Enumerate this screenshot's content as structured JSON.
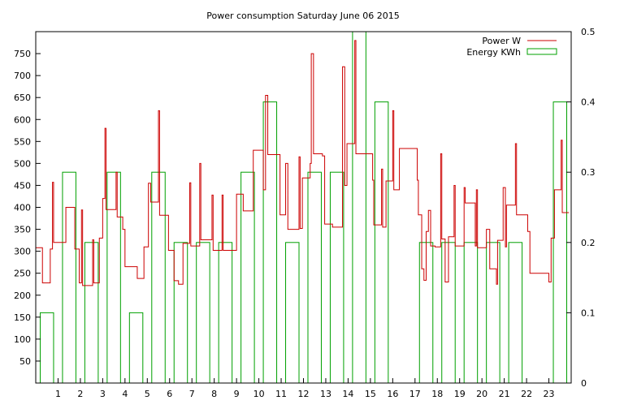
{
  "chart_data": {
    "type": "line",
    "title": "Power consumption Saturday June 06 2015",
    "xlabel": "",
    "ylabel": "",
    "xlim": [
      0,
      24
    ],
    "ylim_left": [
      0,
      800
    ],
    "ylim_right": [
      0,
      0.5
    ],
    "x_ticks": [
      "1",
      "2",
      "3",
      "4",
      "5",
      "6",
      "7",
      "8",
      "9",
      "10",
      "11",
      "12",
      "13",
      "14",
      "15",
      "16",
      "17",
      "18",
      "19",
      "20",
      "21",
      "22",
      "23"
    ],
    "y_ticks_left": [
      "50",
      "100",
      "150",
      "200",
      "250",
      "300",
      "350",
      "400",
      "450",
      "500",
      "550",
      "600",
      "650",
      "700",
      "750"
    ],
    "y_ticks_right": [
      "0",
      "0.1",
      "0.2",
      "0.3",
      "0.4",
      "0.5"
    ],
    "grid": false,
    "legend_position": "top-right",
    "colors": {
      "power": "#cc0000",
      "energy": "#00a000",
      "axis": "#000000"
    },
    "series": [
      {
        "name": "Power W",
        "axis": "left",
        "style": "steps",
        "points": [
          [
            0.0,
            308
          ],
          [
            0.3,
            300
          ],
          [
            0.3,
            228
          ],
          [
            0.65,
            228
          ],
          [
            0.65,
            305
          ],
          [
            0.75,
            305
          ],
          [
            0.75,
            457
          ],
          [
            0.8,
            320
          ],
          [
            1.35,
            320
          ],
          [
            1.35,
            400
          ],
          [
            1.75,
            400
          ],
          [
            1.75,
            305
          ],
          [
            1.95,
            305
          ],
          [
            1.95,
            228
          ],
          [
            2.05,
            228
          ],
          [
            2.05,
            394
          ],
          [
            2.1,
            222
          ],
          [
            2.55,
            222
          ],
          [
            2.55,
            326
          ],
          [
            2.6,
            228
          ],
          [
            2.85,
            228
          ],
          [
            2.85,
            330
          ],
          [
            3.0,
            330
          ],
          [
            3.0,
            420
          ],
          [
            3.1,
            580
          ],
          [
            3.15,
            395
          ],
          [
            3.5,
            395
          ],
          [
            3.6,
            480
          ],
          [
            3.65,
            378
          ],
          [
            3.9,
            378
          ],
          [
            3.9,
            350
          ],
          [
            4.0,
            265
          ],
          [
            4.55,
            265
          ],
          [
            4.55,
            238
          ],
          [
            4.85,
            238
          ],
          [
            4.85,
            310
          ],
          [
            5.05,
            310
          ],
          [
            5.05,
            455
          ],
          [
            5.15,
            412
          ],
          [
            5.45,
            412
          ],
          [
            5.5,
            620
          ],
          [
            5.55,
            382
          ],
          [
            5.95,
            382
          ],
          [
            5.95,
            302
          ],
          [
            6.2,
            302
          ],
          [
            6.2,
            233
          ],
          [
            6.4,
            233
          ],
          [
            6.4,
            225
          ],
          [
            6.6,
            225
          ],
          [
            6.6,
            318
          ],
          [
            6.9,
            318
          ],
          [
            6.9,
            456
          ],
          [
            6.95,
            312
          ],
          [
            7.3,
            312
          ],
          [
            7.35,
            500
          ],
          [
            7.4,
            326
          ],
          [
            7.7,
            326
          ],
          [
            7.9,
            428
          ],
          [
            7.95,
            302
          ],
          [
            8.3,
            302
          ],
          [
            8.35,
            428
          ],
          [
            8.4,
            302
          ],
          [
            9.0,
            302
          ],
          [
            9.0,
            430
          ],
          [
            9.3,
            430
          ],
          [
            9.3,
            392
          ],
          [
            9.7,
            392
          ],
          [
            9.75,
            530
          ],
          [
            10.2,
            530
          ],
          [
            10.2,
            440
          ],
          [
            10.3,
            655
          ],
          [
            10.4,
            520
          ],
          [
            10.9,
            520
          ],
          [
            10.95,
            383
          ],
          [
            11.2,
            383
          ],
          [
            11.2,
            500
          ],
          [
            11.3,
            350
          ],
          [
            11.75,
            350
          ],
          [
            11.8,
            515
          ],
          [
            11.85,
            352
          ],
          [
            11.95,
            352
          ],
          [
            11.95,
            467
          ],
          [
            12.3,
            467
          ],
          [
            12.3,
            500
          ],
          [
            12.35,
            750
          ],
          [
            12.45,
            522
          ],
          [
            12.8,
            522
          ],
          [
            12.85,
            517
          ],
          [
            12.95,
            517
          ],
          [
            12.95,
            362
          ],
          [
            13.3,
            362
          ],
          [
            13.3,
            355
          ],
          [
            13.75,
            355
          ],
          [
            13.75,
            720
          ],
          [
            13.85,
            450
          ],
          [
            13.95,
            450
          ],
          [
            13.95,
            545
          ],
          [
            14.25,
            545
          ],
          [
            14.3,
            780
          ],
          [
            14.35,
            522
          ],
          [
            15.0,
            522
          ],
          [
            15.1,
            462
          ],
          [
            15.15,
            360
          ],
          [
            15.45,
            360
          ],
          [
            15.5,
            487
          ],
          [
            15.55,
            355
          ],
          [
            15.7,
            355
          ],
          [
            15.7,
            460
          ],
          [
            15.95,
            460
          ],
          [
            16.0,
            620
          ],
          [
            16.05,
            440
          ],
          [
            16.25,
            440
          ],
          [
            16.3,
            534
          ],
          [
            17.05,
            534
          ],
          [
            17.1,
            462
          ],
          [
            17.15,
            383
          ],
          [
            17.3,
            383
          ],
          [
            17.3,
            260
          ],
          [
            17.4,
            260
          ],
          [
            17.4,
            234
          ],
          [
            17.5,
            234
          ],
          [
            17.5,
            345
          ],
          [
            17.6,
            345
          ],
          [
            17.6,
            393
          ],
          [
            17.7,
            312
          ],
          [
            17.85,
            312
          ],
          [
            17.9,
            310
          ],
          [
            18.1,
            310
          ],
          [
            18.15,
            522
          ],
          [
            18.2,
            328
          ],
          [
            18.35,
            328
          ],
          [
            18.35,
            230
          ],
          [
            18.5,
            230
          ],
          [
            18.5,
            333
          ],
          [
            18.75,
            333
          ],
          [
            18.75,
            450
          ],
          [
            18.8,
            312
          ],
          [
            19.15,
            312
          ],
          [
            19.2,
            445
          ],
          [
            19.25,
            410
          ],
          [
            19.65,
            410
          ],
          [
            19.7,
            312
          ],
          [
            19.75,
            440
          ],
          [
            19.8,
            308
          ],
          [
            20.2,
            308
          ],
          [
            20.2,
            350
          ],
          [
            20.35,
            350
          ],
          [
            20.35,
            260
          ],
          [
            20.65,
            260
          ],
          [
            20.65,
            225
          ],
          [
            20.7,
            325
          ],
          [
            20.85,
            325
          ],
          [
            20.95,
            445
          ],
          [
            21.05,
            310
          ],
          [
            21.1,
            405
          ],
          [
            21.4,
            405
          ],
          [
            21.5,
            545
          ],
          [
            21.55,
            383
          ],
          [
            22.0,
            383
          ],
          [
            22.05,
            345
          ],
          [
            22.15,
            250
          ],
          [
            22.95,
            250
          ],
          [
            23.0,
            230
          ],
          [
            23.1,
            330
          ],
          [
            23.2,
            330
          ],
          [
            23.25,
            440
          ],
          [
            23.5,
            440
          ],
          [
            23.55,
            553
          ],
          [
            23.6,
            388
          ],
          [
            23.9,
            388
          ]
        ]
      },
      {
        "name": "Energy KWh",
        "axis": "right",
        "style": "boxes",
        "bars": [
          [
            0,
            0.1
          ],
          [
            1,
            0.3
          ],
          [
            2,
            0.2
          ],
          [
            3,
            0.3
          ],
          [
            4,
            0.1
          ],
          [
            5,
            0.3
          ],
          [
            6,
            0.2
          ],
          [
            7,
            0.2
          ],
          [
            8,
            0.2
          ],
          [
            9,
            0.3
          ],
          [
            10,
            0.4
          ],
          [
            11,
            0.2
          ],
          [
            12,
            0.3
          ],
          [
            13,
            0.3
          ],
          [
            14,
            0.5
          ],
          [
            15,
            0.4
          ],
          [
            16,
            0.0
          ],
          [
            17,
            0.2
          ],
          [
            18,
            0.2
          ],
          [
            19,
            0.2
          ],
          [
            20,
            0.2
          ],
          [
            21,
            0.2
          ],
          [
            22,
            0.0
          ],
          [
            23,
            0.4
          ]
        ]
      }
    ]
  }
}
